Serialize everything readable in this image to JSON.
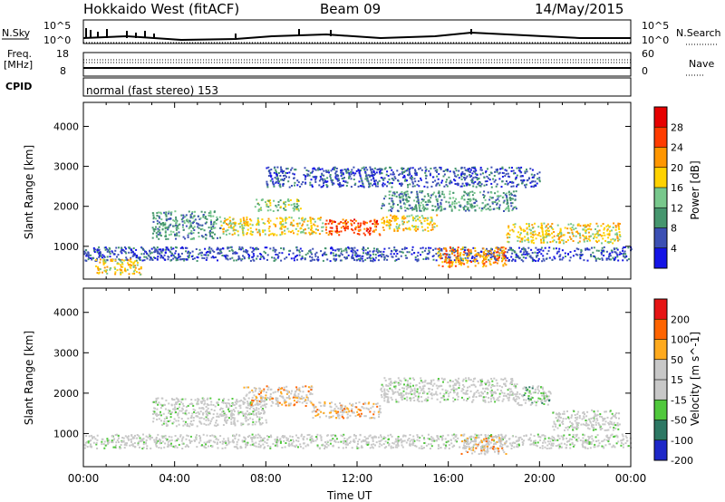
{
  "header": {
    "station": "Hokkaido West (fitACF)",
    "beam": "Beam 09",
    "date": "14/May/2015"
  },
  "summary_panels": {
    "nsky_label": "N.Sky",
    "nsearch_label": "N.Search",
    "noise_ticks": [
      "10^5",
      "10^0"
    ],
    "freq_label_line1": "Freq.",
    "freq_label_line2": "[MHz]",
    "freq_ticks": [
      "18",
      "8"
    ],
    "nave_label": "Nave",
    "nave_ticks": [
      "60",
      "0"
    ],
    "cpid_label": "CPID",
    "cpid_text": "normal (fast stereo) 153"
  },
  "chart_data": [
    {
      "type": "heatmap",
      "title": "",
      "quantity": "Power",
      "ylabel": "Slant Range [km]",
      "xlabel": "",
      "ylim": [
        180,
        4600
      ],
      "yticks": [
        "1000",
        "2000",
        "3000",
        "4000"
      ],
      "colorbar_label": "Power [dB]",
      "colorbar_ticks": [
        "4",
        "8",
        "12",
        "16",
        "20",
        "24",
        "28"
      ],
      "colorbar_colors": [
        "#1414e6",
        "#3c50b4",
        "#46966e",
        "#78c88c",
        "#ffd200",
        "#ff9600",
        "#ff3c00",
        "#e60000"
      ],
      "regions": [
        {
          "t0": 0,
          "t1": 24,
          "r0": 650,
          "r1": 1000,
          "level": 1
        },
        {
          "t0": 0.5,
          "t1": 2.5,
          "r0": 300,
          "r1": 700,
          "level": 4
        },
        {
          "t0": 3,
          "t1": 6,
          "r0": 1200,
          "r1": 1900,
          "level": 2
        },
        {
          "t0": 6,
          "t1": 10.5,
          "r0": 1300,
          "r1": 1750,
          "level": 4
        },
        {
          "t0": 10.5,
          "t1": 13,
          "r0": 1300,
          "r1": 1700,
          "level": 6
        },
        {
          "t0": 13,
          "t1": 15.5,
          "r0": 1400,
          "r1": 1800,
          "level": 4
        },
        {
          "t0": 7.5,
          "t1": 9.5,
          "r0": 1900,
          "r1": 2200,
          "level": 3
        },
        {
          "t0": 13,
          "t1": 19,
          "r0": 1900,
          "r1": 2400,
          "level": 2
        },
        {
          "t0": 15.5,
          "t1": 18.5,
          "r0": 500,
          "r1": 1000,
          "level": 5
        },
        {
          "t0": 18.5,
          "t1": 23.5,
          "r0": 1100,
          "r1": 1600,
          "level": 4
        },
        {
          "t0": 8,
          "t1": 20,
          "r0": 2500,
          "r1": 3000,
          "level": 1
        }
      ]
    },
    {
      "type": "heatmap",
      "title": "",
      "quantity": "Velocity",
      "ylabel": "Slant Range [km]",
      "xlabel": "Time UT",
      "ylim": [
        180,
        4600
      ],
      "xticks": [
        "00:00",
        "04:00",
        "08:00",
        "12:00",
        "16:00",
        "20:00",
        "00:00"
      ],
      "yticks": [
        "1000",
        "2000",
        "3000",
        "4000"
      ],
      "colorbar_label": "Velocity [m s^-1]",
      "colorbar_ticks": [
        "200",
        "100",
        "50",
        "15",
        "-15",
        "-50",
        "-100",
        "-200"
      ],
      "colorbar_colors": [
        "#1e28c8",
        "#2d7864",
        "#50c83c",
        "#c8c8c8",
        "#c8c8c8",
        "#ffaa1e",
        "#ff6400",
        "#e61414"
      ],
      "regions": [
        {
          "t0": 0,
          "t1": 24,
          "r0": 650,
          "r1": 1000,
          "level": 3
        },
        {
          "t0": 3,
          "t1": 8,
          "r0": 1200,
          "r1": 1900,
          "level": 3
        },
        {
          "t0": 7,
          "t1": 10,
          "r0": 1700,
          "r1": 2200,
          "level": 5
        },
        {
          "t0": 10,
          "t1": 13,
          "r0": 1400,
          "r1": 1800,
          "level": 5
        },
        {
          "t0": 13,
          "t1": 19,
          "r0": 1800,
          "r1": 2400,
          "level": 3
        },
        {
          "t0": 16.5,
          "t1": 18.5,
          "r0": 500,
          "r1": 1000,
          "level": 5
        },
        {
          "t0": 19,
          "t1": 20.5,
          "r0": 1700,
          "r1": 2200,
          "level": 2
        },
        {
          "t0": 20.5,
          "t1": 23.5,
          "r0": 1100,
          "r1": 1600,
          "level": 3
        }
      ]
    }
  ]
}
